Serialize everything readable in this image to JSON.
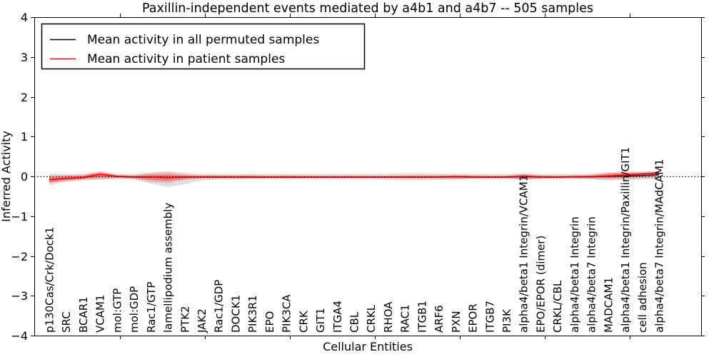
{
  "chart_data": {
    "type": "line",
    "title": "Paxillin-independent events mediated by a4b1 and a4b7 -- 505 samples",
    "xlabel": "Cellular Entities",
    "ylabel": "Inferred Activity",
    "ylim": [
      -4,
      4
    ],
    "ytick_values": [
      4,
      3,
      2,
      1,
      0,
      -1,
      -2,
      -3,
      -4
    ],
    "ytick_labels": [
      "4",
      "3",
      "2",
      "1",
      "0",
      "−1",
      "−2",
      "−3",
      "−4"
    ],
    "grid": false,
    "legend_position": "upper left",
    "categories": [
      "p130Cas/Crk/Dock1",
      "SRC",
      "BCAR1",
      "VCAM1",
      "mol:GTP",
      "mol:GDP",
      "Rac1/GTP",
      "lamellipodium assembly",
      "PTK2",
      "JAK2",
      "Rac1/GDP",
      "DOCK1",
      "PIK3R1",
      "EPO",
      "PIK3CA",
      "CRK",
      "GIT1",
      "ITGA4",
      "CBL",
      "CRKL",
      "RHOA",
      "RAC1",
      "ITGB1",
      "ARF6",
      "PXN",
      "EPOR",
      "ITGB7",
      "PI3K",
      "alpha4/beta1 Integrin/VCAM1",
      "EPO/EPOR (dimer)",
      "CRKL/CBL",
      "alpha4/beta1 Integrin",
      "alpha4/beta7 Integrin",
      "MADCAM1",
      "alpha4/beta1 Integrin/Paxillin/GIT1",
      "cell adhesion",
      "alpha4/beta7 Integrin/MAdCAM1"
    ],
    "series": [
      {
        "name": "Mean activity in all permuted samples",
        "color": "#000000",
        "width": 1.2,
        "values": [
          -0.08,
          -0.05,
          -0.03,
          0.05,
          0.0,
          -0.02,
          -0.02,
          -0.03,
          -0.02,
          -0.02,
          -0.02,
          -0.02,
          -0.02,
          -0.02,
          -0.02,
          -0.02,
          -0.02,
          -0.02,
          -0.02,
          -0.02,
          -0.02,
          -0.02,
          -0.02,
          -0.02,
          -0.01,
          -0.02,
          -0.02,
          -0.02,
          0.0,
          -0.02,
          -0.02,
          -0.01,
          -0.01,
          0.0,
          0.01,
          0.02,
          0.04
        ]
      },
      {
        "name": "Mean activity in patient samples",
        "color": "#ff0000",
        "width": 1.6,
        "values": [
          -0.08,
          -0.05,
          -0.03,
          0.05,
          0.0,
          -0.02,
          -0.02,
          -0.03,
          -0.02,
          -0.02,
          -0.02,
          -0.02,
          -0.02,
          -0.02,
          -0.02,
          -0.02,
          -0.02,
          -0.02,
          -0.02,
          -0.02,
          -0.02,
          -0.02,
          -0.02,
          -0.02,
          -0.01,
          -0.02,
          -0.02,
          -0.02,
          0.0,
          -0.02,
          -0.02,
          -0.01,
          -0.01,
          0.01,
          0.03,
          0.06,
          0.09
        ]
      }
    ],
    "bands": [
      {
        "name": "permuted-samples-spread-band",
        "color": "#000000",
        "opacity": 0.12,
        "upper": [
          0.06,
          0.06,
          0.06,
          0.08,
          0.06,
          0.06,
          0.1,
          0.13,
          0.09,
          0.06,
          0.06,
          0.06,
          0.06,
          0.06,
          0.06,
          0.06,
          0.06,
          0.06,
          0.06,
          0.06,
          0.07,
          0.08,
          0.08,
          0.07,
          0.07,
          0.06,
          0.06,
          0.06,
          0.07,
          0.06,
          0.06,
          0.06,
          0.07,
          0.09,
          0.08,
          0.08,
          0.09
        ],
        "lower": [
          -0.15,
          -0.1,
          -0.08,
          -0.08,
          -0.07,
          -0.08,
          -0.18,
          -0.27,
          -0.2,
          -0.1,
          -0.08,
          -0.08,
          -0.07,
          -0.07,
          -0.07,
          -0.07,
          -0.07,
          -0.07,
          -0.07,
          -0.07,
          -0.09,
          -0.1,
          -0.1,
          -0.09,
          -0.08,
          -0.07,
          -0.07,
          -0.07,
          -0.08,
          -0.07,
          -0.07,
          -0.07,
          -0.08,
          -0.1,
          -0.09,
          -0.08,
          -0.07
        ]
      },
      {
        "name": "patient-samples-spread-band-outer",
        "color": "#ff0000",
        "opacity": 0.18,
        "upper": [
          0.02,
          0.03,
          0.04,
          0.14,
          0.04,
          0.03,
          0.08,
          0.1,
          0.05,
          0.03,
          0.03,
          0.03,
          0.03,
          0.02,
          0.03,
          0.02,
          0.02,
          0.02,
          0.02,
          0.02,
          0.02,
          0.03,
          0.03,
          0.03,
          0.04,
          0.03,
          0.02,
          0.02,
          0.07,
          0.03,
          0.02,
          0.03,
          0.04,
          0.1,
          0.13,
          0.12,
          0.13
        ],
        "lower": [
          -0.22,
          -0.14,
          -0.1,
          -0.08,
          -0.05,
          -0.06,
          -0.14,
          -0.17,
          -0.09,
          -0.06,
          -0.06,
          -0.06,
          -0.06,
          -0.05,
          -0.06,
          -0.05,
          -0.05,
          -0.05,
          -0.05,
          -0.05,
          -0.05,
          -0.06,
          -0.06,
          -0.06,
          -0.07,
          -0.06,
          -0.05,
          -0.05,
          -0.09,
          -0.06,
          -0.05,
          -0.05,
          -0.06,
          -0.08,
          -0.07,
          -0.05,
          -0.03
        ]
      },
      {
        "name": "patient-samples-spread-band-inner",
        "color": "#ff0000",
        "opacity": 0.33,
        "upper": [
          -0.03,
          -0.01,
          0.01,
          0.1,
          0.02,
          0.01,
          0.04,
          0.04,
          0.02,
          0.01,
          0.01,
          0.01,
          0.01,
          0.0,
          0.01,
          0.0,
          0.0,
          0.0,
          0.0,
          0.0,
          0.0,
          0.01,
          0.01,
          0.01,
          0.02,
          0.01,
          0.0,
          0.0,
          0.04,
          0.01,
          0.0,
          0.01,
          0.02,
          0.06,
          0.09,
          0.09,
          0.11
        ],
        "lower": [
          -0.16,
          -0.1,
          -0.07,
          -0.02,
          -0.03,
          -0.04,
          -0.09,
          -0.11,
          -0.06,
          -0.04,
          -0.04,
          -0.04,
          -0.04,
          -0.04,
          -0.04,
          -0.04,
          -0.04,
          -0.04,
          -0.04,
          -0.04,
          -0.04,
          -0.04,
          -0.04,
          -0.04,
          -0.04,
          -0.04,
          -0.04,
          -0.04,
          -0.05,
          -0.04,
          -0.04,
          -0.04,
          -0.04,
          -0.04,
          -0.03,
          0.0,
          0.02
        ]
      }
    ],
    "zero_line": {
      "value": 0,
      "style": "dotted",
      "color": "#000000"
    }
  }
}
